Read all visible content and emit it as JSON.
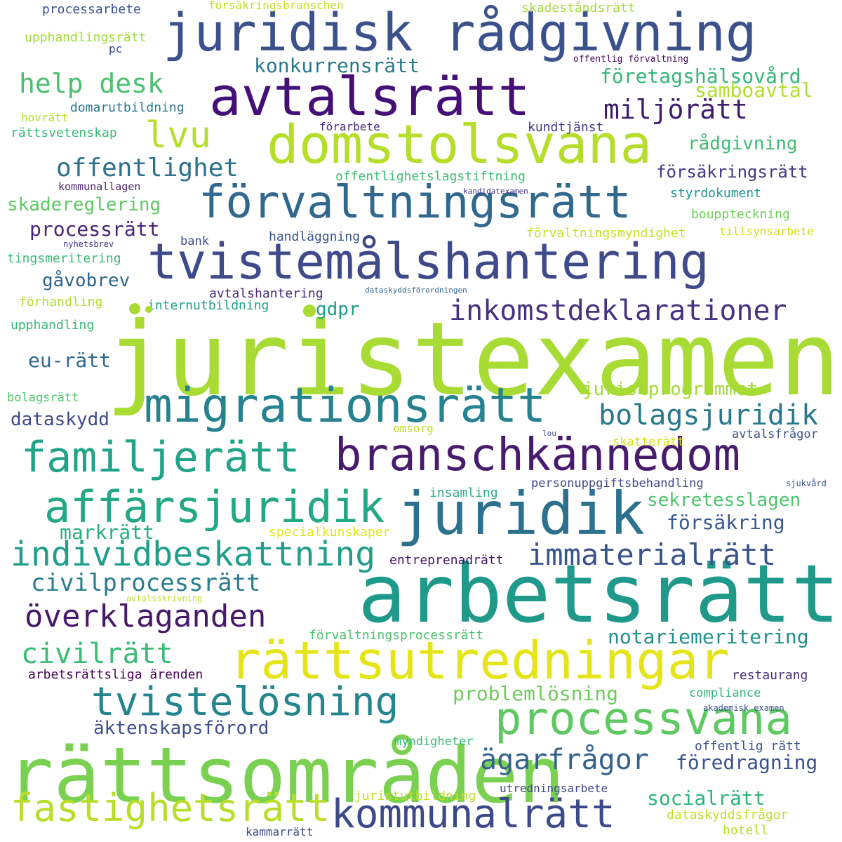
{
  "word_cloud": {
    "background": "#ffffff",
    "palette": "viridis",
    "words": [
      {
        "text": "juristexamen",
        "color": "#a8db34"
      },
      {
        "text": "arbetsrätt",
        "color": "#1f9a8a"
      },
      {
        "text": "rättsområden",
        "color": "#7ad151"
      },
      {
        "text": "juridisk rådgivning",
        "color": "#3b518b"
      },
      {
        "text": "avtalsrätt",
        "color": "#440f76"
      },
      {
        "text": "domstolsvana",
        "color": "#b5de2b"
      },
      {
        "text": "förvaltningsrätt",
        "color": "#31688e"
      },
      {
        "text": "tvistemålshantering",
        "color": "#3e4a89"
      },
      {
        "text": "migrationsrätt",
        "color": "#26828e"
      },
      {
        "text": "branschkännedom",
        "color": "#481b6d"
      },
      {
        "text": "juridik",
        "color": "#2c728e"
      },
      {
        "text": "rättsutredningar",
        "color": "#e5e419"
      },
      {
        "text": "processvana",
        "color": "#5ec962"
      },
      {
        "text": "kommunalrätt",
        "color": "#3e4989"
      },
      {
        "text": "familjerätt",
        "color": "#20a386"
      },
      {
        "text": "affärsjuridik",
        "color": "#22a884"
      },
      {
        "text": "individbeskattning",
        "color": "#1f9e89"
      },
      {
        "text": "tvistelösning",
        "color": "#25858e"
      },
      {
        "text": "fastighetsrätt",
        "color": "#b8de29"
      },
      {
        "text": "lvu",
        "color": "#b5de2b"
      },
      {
        "text": "inkomstdeklarationer",
        "color": "#46327e"
      },
      {
        "text": "immaterialrätt",
        "color": "#3a548c"
      },
      {
        "text": "överklaganden",
        "color": "#48186a"
      },
      {
        "text": "bolagsjuridik",
        "color": "#2a788e"
      },
      {
        "text": "ägarfrågor",
        "color": "#33638d"
      },
      {
        "text": "help desk",
        "color": "#4ac16d"
      },
      {
        "text": "miljörätt",
        "color": "#3f1d6c"
      },
      {
        "text": "offentlighet",
        "color": "#2d708e"
      },
      {
        "text": "civilrätt",
        "color": "#3bbb75"
      },
      {
        "text": "civilprocessrätt",
        "color": "#287c8e"
      },
      {
        "text": "företagshälsovård",
        "color": "#35b779"
      },
      {
        "text": "notariemeritering",
        "color": "#21908d"
      },
      {
        "text": "föredragning",
        "color": "#3b528b"
      },
      {
        "text": "problemlösning",
        "color": "#6ccd5a"
      },
      {
        "text": "socialrätt",
        "color": "#2fb47c"
      },
      {
        "text": "processrätt",
        "color": "#482475"
      },
      {
        "text": "markrätt",
        "color": "#29af7f"
      },
      {
        "text": "sekretesslagen",
        "color": "#4ec36b"
      },
      {
        "text": "försäkring",
        "color": "#38598c"
      },
      {
        "text": "juristprogrammet",
        "color": "#a2da37"
      },
      {
        "text": "skadereglering",
        "color": "#5ec962"
      },
      {
        "text": "rådgivning",
        "color": "#3fbc73"
      },
      {
        "text": "samboavtal",
        "color": "#b2dd2d"
      },
      {
        "text": "konkurrensrätt",
        "color": "#2a788e"
      },
      {
        "text": "försäkringsrätt",
        "color": "#443a83"
      },
      {
        "text": "äktenskapsförord",
        "color": "#3d4e8a"
      },
      {
        "text": "eu-rätt",
        "color": "#30698e"
      },
      {
        "text": "dataskydd",
        "color": "#3e4a89"
      },
      {
        "text": "gåvobrev",
        "color": "#31668e"
      },
      {
        "text": "gdpr",
        "color": "#1f9e89"
      },
      {
        "text": "processarbete",
        "color": "#3b528b"
      },
      {
        "text": "försäkringsbranschen",
        "color": "#c2df23"
      },
      {
        "text": "skadeståndsrätt",
        "color": "#a5db36"
      },
      {
        "text": "upphandlingsrätt",
        "color": "#a2da37"
      },
      {
        "text": "pc",
        "color": "#3e4989"
      },
      {
        "text": "offentlig förvaltning",
        "color": "#460b5e"
      },
      {
        "text": "domarutbildning",
        "color": "#2a768e"
      },
      {
        "text": "hovrätt",
        "color": "#b5de2b"
      },
      {
        "text": "rättsvetenskap",
        "color": "#3bbb75"
      },
      {
        "text": "förarbete",
        "color": "#472d7b"
      },
      {
        "text": "kundtjänst",
        "color": "#443983"
      },
      {
        "text": "offentlighetslagstiftning",
        "color": "#3fbc73"
      },
      {
        "text": "kommunallagen",
        "color": "#481f70"
      },
      {
        "text": "kandidatexamen",
        "color": "#46327e"
      },
      {
        "text": "styrdokument",
        "color": "#1f968b"
      },
      {
        "text": "bouppteckning",
        "color": "#6ece58"
      },
      {
        "text": "förvaltningsmyndighet",
        "color": "#c8e020"
      },
      {
        "text": "tillsynsarbete",
        "color": "#d0e11c"
      },
      {
        "text": "nyhetsbrev",
        "color": "#443983"
      },
      {
        "text": "bank",
        "color": "#3e4a89"
      },
      {
        "text": "handläggning",
        "color": "#3b528b"
      },
      {
        "text": "tingsmeritering",
        "color": "#3aba76"
      },
      {
        "text": "avtalshantering",
        "color": "#472c7a"
      },
      {
        "text": "dataskyddsförordningen",
        "color": "#31688e"
      },
      {
        "text": "förhandling",
        "color": "#b2dd2d"
      },
      {
        "text": "internutbildning",
        "color": "#1fa088"
      },
      {
        "text": "upphandling",
        "color": "#35b779"
      },
      {
        "text": "bolagsrätt",
        "color": "#4ec36b"
      },
      {
        "text": "omsorg",
        "color": "#c2df23"
      },
      {
        "text": "lou",
        "color": "#3e4989"
      },
      {
        "text": "avtalsfrågor",
        "color": "#3b528b"
      },
      {
        "text": "skatterätt",
        "color": "#d8e219"
      },
      {
        "text": "insamling",
        "color": "#2ab07f"
      },
      {
        "text": "personuppgiftsbehandling",
        "color": "#3e4989"
      },
      {
        "text": "sjukvård",
        "color": "#3b528b"
      },
      {
        "text": "specialkunskaper",
        "color": "#e2e418"
      },
      {
        "text": "entreprenadrätt",
        "color": "#471365"
      },
      {
        "text": "avtalsskrivning",
        "color": "#c2df23"
      },
      {
        "text": "förvaltningsprocessrätt",
        "color": "#4ac16d"
      },
      {
        "text": "arbetsrättsliga ärenden",
        "color": "#440154"
      },
      {
        "text": "restaurang",
        "color": "#472d7b"
      },
      {
        "text": "compliance",
        "color": "#2fb47c"
      },
      {
        "text": "akademisk examen",
        "color": "#3b528b"
      },
      {
        "text": "myndigheter",
        "color": "#35b779"
      },
      {
        "text": "offentlig rätt",
        "color": "#3b528b"
      },
      {
        "text": "juristutbildning",
        "color": "#c2df23"
      },
      {
        "text": "utredningsarbete",
        "color": "#3e4a89"
      },
      {
        "text": "dataskyddsfrågor",
        "color": "#bddf26"
      },
      {
        "text": "kammarrätt",
        "color": "#3e4a89"
      },
      {
        "text": "hotell",
        "color": "#b5de2b"
      }
    ],
    "dots": [
      {
        "color": "#a8db34"
      },
      {
        "color": "#a8db34"
      },
      {
        "color": "#a8db34"
      }
    ]
  }
}
